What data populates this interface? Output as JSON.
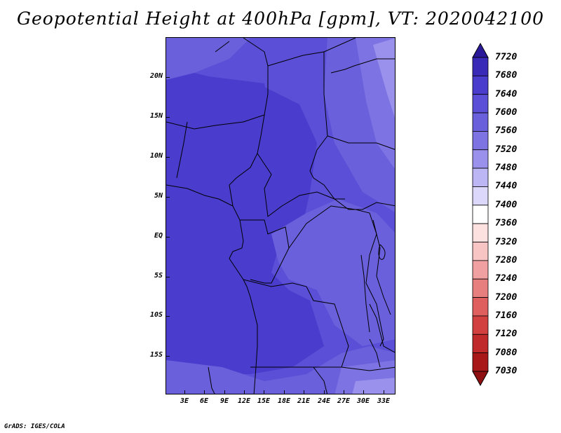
{
  "title": "Geopotential Height at 400hPa [gpm], VT: 2020042100",
  "credit": "GrADS: IGES/COLA",
  "lat_labels": [
    "20N",
    "15N",
    "10N",
    "5N",
    "EQ",
    "5S",
    "10S",
    "15S"
  ],
  "lon_labels": [
    "3E",
    "6E",
    "9E",
    "12E",
    "15E",
    "18E",
    "21E",
    "24E",
    "27E",
    "30E",
    "33E"
  ],
  "colorbar": {
    "labels": [
      "7720",
      "7680",
      "7640",
      "7600",
      "7560",
      "7520",
      "7480",
      "7440",
      "7400",
      "7360",
      "7320",
      "7280",
      "7240",
      "7200",
      "7160",
      "7120",
      "7080",
      "7030"
    ],
    "colors": [
      "#2a1a9a",
      "#3a2ab8",
      "#4a3ccc",
      "#5a4fd6",
      "#6b60dc",
      "#7d73e3",
      "#9a91ec",
      "#bdb6f4",
      "#dcd8fb",
      "#ffffff",
      "#fde0e0",
      "#f8c4c4",
      "#f0a0a0",
      "#e87f7f",
      "#df5f5f",
      "#d34040",
      "#c12a2a",
      "#a81818",
      "#8e1010"
    ]
  }
}
